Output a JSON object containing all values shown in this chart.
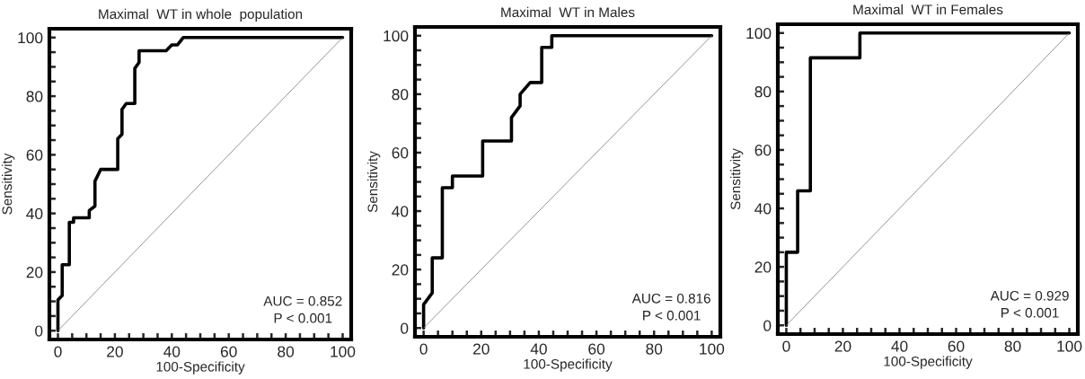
{
  "chart_data": [
    {
      "type": "line",
      "title": "Maximal  WT in whole  population",
      "xlabel": "100-Specificity",
      "ylabel": "Sensitivity",
      "xlim": [
        -3,
        103
      ],
      "ylim": [
        -3,
        103
      ],
      "xticks": [
        0,
        {
          "value": 5,
          "label": null
        },
        {
          "value": 10,
          "label": null
        },
        {
          "value": 15,
          "label": null
        },
        20,
        {
          "value": 25,
          "label": null
        },
        {
          "value": 30,
          "label": null
        },
        {
          "value": 35,
          "label": null
        },
        40,
        {
          "value": 45,
          "label": null
        },
        {
          "value": 50,
          "label": null
        },
        {
          "value": 55,
          "label": null
        },
        60,
        {
          "value": 65,
          "label": null
        },
        {
          "value": 70,
          "label": null
        },
        {
          "value": 75,
          "label": null
        },
        80,
        {
          "value": 85,
          "label": null
        },
        {
          "value": 90,
          "label": null
        },
        {
          "value": 95,
          "label": null
        },
        100
      ],
      "yticks": [
        0,
        {
          "value": 5,
          "label": null
        },
        {
          "value": 10,
          "label": null
        },
        {
          "value": 15,
          "label": null
        },
        20,
        {
          "value": 25,
          "label": null
        },
        {
          "value": 30,
          "label": null
        },
        {
          "value": 35,
          "label": null
        },
        40,
        {
          "value": 45,
          "label": null
        },
        {
          "value": 50,
          "label": null
        },
        {
          "value": 55,
          "label": null
        },
        60,
        {
          "value": 65,
          "label": null
        },
        {
          "value": 70,
          "label": null
        },
        {
          "value": 75,
          "label": null
        },
        80,
        {
          "value": 85,
          "label": null
        },
        {
          "value": 90,
          "label": null
        },
        {
          "value": 95,
          "label": null
        },
        100
      ],
      "series": [
        {
          "color": "#000000",
          "x": [
            0,
            0,
            1.5,
            1.5,
            4,
            4,
            5.5,
            5.5,
            11,
            11,
            13,
            13,
            15,
            21,
            21,
            22.5,
            22.5,
            24,
            27,
            27,
            28.5,
            28.5,
            38,
            40,
            42,
            44,
            100
          ],
          "values": [
            0,
            10.5,
            12,
            22.5,
            22.5,
            37,
            37,
            38.5,
            38.5,
            41,
            42.5,
            51,
            55,
            55,
            65.5,
            67,
            75.5,
            77.5,
            77.5,
            89.5,
            91.5,
            95.5,
            95.5,
            97.5,
            97.5,
            100,
            100
          ]
        },
        {
          "color": "#808080",
          "x": [
            0,
            100
          ],
          "values": [
            0,
            100
          ]
        }
      ],
      "annotations": [
        "AUC = 0.852",
        "P < 0.001"
      ]
    },
    {
      "type": "line",
      "title": "Maximal  WT in Males",
      "xlabel": "100-Specificity",
      "ylabel": "Sensitivity",
      "xlim": [
        -3,
        103
      ],
      "ylim": [
        -3,
        103
      ],
      "xticks": [
        0,
        {
          "value": 5,
          "label": null
        },
        {
          "value": 10,
          "label": null
        },
        {
          "value": 15,
          "label": null
        },
        20,
        {
          "value": 25,
          "label": null
        },
        {
          "value": 30,
          "label": null
        },
        {
          "value": 35,
          "label": null
        },
        40,
        {
          "value": 45,
          "label": null
        },
        {
          "value": 50,
          "label": null
        },
        {
          "value": 55,
          "label": null
        },
        60,
        {
          "value": 65,
          "label": null
        },
        {
          "value": 70,
          "label": null
        },
        {
          "value": 75,
          "label": null
        },
        80,
        {
          "value": 85,
          "label": null
        },
        {
          "value": 90,
          "label": null
        },
        {
          "value": 95,
          "label": null
        },
        100
      ],
      "yticks": [
        0,
        {
          "value": 5,
          "label": null
        },
        {
          "value": 10,
          "label": null
        },
        {
          "value": 15,
          "label": null
        },
        20,
        {
          "value": 25,
          "label": null
        },
        {
          "value": 30,
          "label": null
        },
        {
          "value": 35,
          "label": null
        },
        40,
        {
          "value": 45,
          "label": null
        },
        {
          "value": 50,
          "label": null
        },
        {
          "value": 55,
          "label": null
        },
        60,
        {
          "value": 65,
          "label": null
        },
        {
          "value": 70,
          "label": null
        },
        {
          "value": 75,
          "label": null
        },
        80,
        {
          "value": 85,
          "label": null
        },
        {
          "value": 90,
          "label": null
        },
        {
          "value": 95,
          "label": null
        },
        100
      ],
      "series": [
        {
          "color": "#000000",
          "x": [
            0,
            0,
            3,
            3,
            6.5,
            6.5,
            10,
            10,
            20.5,
            20.5,
            30.5,
            30.5,
            33.5,
            33.5,
            37,
            41,
            41,
            44.5,
            44.5,
            100
          ],
          "values": [
            0,
            8,
            12,
            24,
            24,
            48,
            48,
            52,
            52,
            64,
            64,
            72,
            76,
            80,
            84,
            84,
            96,
            96,
            100,
            100
          ]
        },
        {
          "color": "#808080",
          "x": [
            0,
            100
          ],
          "values": [
            0,
            100
          ]
        }
      ],
      "annotations": [
        "AUC = 0.816",
        "P < 0.001"
      ]
    },
    {
      "type": "line",
      "title": "Maximal  WT in Females",
      "xlabel": "100-Specificity",
      "ylabel": "Sensitivity",
      "xlim": [
        -3,
        103
      ],
      "ylim": [
        -3,
        103
      ],
      "xticks": [
        0,
        {
          "value": 5,
          "label": null
        },
        {
          "value": 10,
          "label": null
        },
        {
          "value": 15,
          "label": null
        },
        20,
        {
          "value": 25,
          "label": null
        },
        {
          "value": 30,
          "label": null
        },
        {
          "value": 35,
          "label": null
        },
        40,
        {
          "value": 45,
          "label": null
        },
        {
          "value": 50,
          "label": null
        },
        {
          "value": 55,
          "label": null
        },
        60,
        {
          "value": 65,
          "label": null
        },
        {
          "value": 70,
          "label": null
        },
        {
          "value": 75,
          "label": null
        },
        80,
        {
          "value": 85,
          "label": null
        },
        {
          "value": 90,
          "label": null
        },
        {
          "value": 95,
          "label": null
        },
        100
      ],
      "yticks": [
        0,
        {
          "value": 5,
          "label": null
        },
        {
          "value": 10,
          "label": null
        },
        {
          "value": 15,
          "label": null
        },
        20,
        {
          "value": 25,
          "label": null
        },
        {
          "value": 30,
          "label": null
        },
        {
          "value": 35,
          "label": null
        },
        40,
        {
          "value": 45,
          "label": null
        },
        {
          "value": 50,
          "label": null
        },
        {
          "value": 55,
          "label": null
        },
        60,
        {
          "value": 65,
          "label": null
        },
        {
          "value": 70,
          "label": null
        },
        {
          "value": 75,
          "label": null
        },
        80,
        {
          "value": 85,
          "label": null
        },
        {
          "value": 90,
          "label": null
        },
        {
          "value": 95,
          "label": null
        },
        100
      ],
      "series": [
        {
          "color": "#000000",
          "x": [
            0,
            0,
            4,
            4,
            8.5,
            8.5,
            26,
            26,
            100
          ],
          "values": [
            0,
            25,
            25,
            46,
            46,
            91.5,
            91.5,
            100,
            100
          ]
        },
        {
          "color": "#808080",
          "x": [
            0,
            100
          ],
          "values": [
            0,
            100
          ]
        }
      ],
      "annotations": [
        "AUC = 0.929",
        "P < 0.001"
      ]
    }
  ]
}
